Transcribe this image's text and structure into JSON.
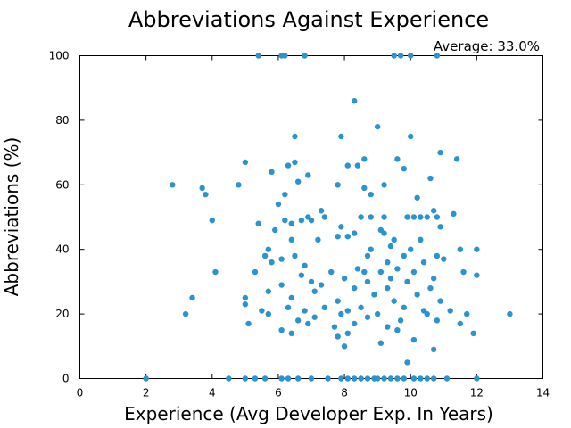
{
  "chart_data": {
    "type": "scatter",
    "title": "Abbreviations Against Experience",
    "annotation": "Average: 33.0%",
    "xlabel": "Experience (Avg Developer Exp. In Years)",
    "ylabel": "Abbreviations (%)",
    "xlim": [
      0,
      14
    ],
    "ylim": [
      0,
      100
    ],
    "xticks": [
      0,
      2,
      4,
      6,
      8,
      10,
      12,
      14
    ],
    "yticks": [
      0,
      20,
      40,
      60,
      80,
      100
    ],
    "grid": false,
    "marker_color": "#2b93d0",
    "series": [
      {
        "points": [
          [
            2.0,
            0
          ],
          [
            4.5,
            0
          ],
          [
            5.0,
            0
          ],
          [
            5.3,
            0
          ],
          [
            5.6,
            0
          ],
          [
            6.1,
            0
          ],
          [
            6.3,
            0
          ],
          [
            6.6,
            0
          ],
          [
            7.0,
            0
          ],
          [
            7.5,
            0
          ],
          [
            7.9,
            0
          ],
          [
            8.1,
            0
          ],
          [
            8.3,
            0
          ],
          [
            8.5,
            0
          ],
          [
            8.7,
            0
          ],
          [
            8.9,
            0
          ],
          [
            9.0,
            0
          ],
          [
            9.2,
            0
          ],
          [
            9.4,
            0
          ],
          [
            9.6,
            0
          ],
          [
            9.8,
            0
          ],
          [
            10.1,
            0
          ],
          [
            10.3,
            0
          ],
          [
            10.5,
            0
          ],
          [
            10.7,
            0
          ],
          [
            11.1,
            0
          ],
          [
            12.0,
            0
          ],
          [
            5.4,
            100
          ],
          [
            6.1,
            100
          ],
          [
            6.2,
            100
          ],
          [
            6.8,
            100
          ],
          [
            9.5,
            100
          ],
          [
            9.7,
            100
          ],
          [
            10.0,
            100
          ],
          [
            10.8,
            100
          ],
          [
            8.3,
            86
          ],
          [
            9.0,
            78
          ],
          [
            7.9,
            75
          ],
          [
            10.0,
            75
          ],
          [
            6.5,
            75
          ],
          [
            10.9,
            70
          ],
          [
            11.4,
            68
          ],
          [
            8.6,
            68
          ],
          [
            9.6,
            68
          ],
          [
            6.5,
            67
          ],
          [
            6.3,
            66
          ],
          [
            5.0,
            67
          ],
          [
            8.1,
            66
          ],
          [
            8.4,
            66
          ],
          [
            9.8,
            65
          ],
          [
            5.8,
            64
          ],
          [
            6.9,
            63
          ],
          [
            10.6,
            62
          ],
          [
            6.6,
            61
          ],
          [
            9.2,
            60
          ],
          [
            2.8,
            60
          ],
          [
            4.8,
            60
          ],
          [
            7.8,
            60
          ],
          [
            3.7,
            59
          ],
          [
            8.6,
            59
          ],
          [
            3.8,
            57
          ],
          [
            6.2,
            57
          ],
          [
            8.8,
            57
          ],
          [
            10.2,
            56
          ],
          [
            6.0,
            54
          ],
          [
            4.0,
            49
          ],
          [
            7.3,
            52
          ],
          [
            10.7,
            52
          ],
          [
            11.3,
            51
          ],
          [
            6.2,
            49
          ],
          [
            6.7,
            49
          ],
          [
            6.9,
            50
          ],
          [
            7.0,
            49
          ],
          [
            7.4,
            50
          ],
          [
            8.5,
            50
          ],
          [
            8.8,
            50
          ],
          [
            9.2,
            50
          ],
          [
            9.9,
            50
          ],
          [
            10.1,
            50
          ],
          [
            10.3,
            50
          ],
          [
            10.5,
            50
          ],
          [
            10.8,
            50
          ],
          [
            5.4,
            48
          ],
          [
            6.4,
            48
          ],
          [
            7.9,
            47
          ],
          [
            9.1,
            46
          ],
          [
            10.9,
            47
          ],
          [
            5.9,
            46
          ],
          [
            8.3,
            45
          ],
          [
            9.2,
            45
          ],
          [
            7.8,
            44
          ],
          [
            8.1,
            44
          ],
          [
            6.4,
            43
          ],
          [
            7.2,
            43
          ],
          [
            9.5,
            43
          ],
          [
            10.3,
            43
          ],
          [
            9.4,
            41
          ],
          [
            5.7,
            40
          ],
          [
            8.8,
            40
          ],
          [
            10.0,
            40
          ],
          [
            11.5,
            40
          ],
          [
            12.0,
            40
          ],
          [
            5.6,
            38
          ],
          [
            6.5,
            38
          ],
          [
            8.7,
            38
          ],
          [
            9.8,
            38
          ],
          [
            10.8,
            38
          ],
          [
            6.1,
            37
          ],
          [
            11.0,
            37
          ],
          [
            5.8,
            36
          ],
          [
            9.3,
            36
          ],
          [
            10.4,
            36
          ],
          [
            6.8,
            35
          ],
          [
            8.4,
            34
          ],
          [
            9.6,
            34
          ],
          [
            4.1,
            33
          ],
          [
            5.3,
            33
          ],
          [
            7.6,
            33
          ],
          [
            8.6,
            33
          ],
          [
            9.1,
            33
          ],
          [
            10.1,
            33
          ],
          [
            11.6,
            33
          ],
          [
            6.7,
            32
          ],
          [
            8.0,
            31
          ],
          [
            9.4,
            31
          ],
          [
            12.0,
            32
          ],
          [
            10.7,
            31
          ],
          [
            7.0,
            30
          ],
          [
            8.7,
            30
          ],
          [
            9.9,
            30
          ],
          [
            6.1,
            29
          ],
          [
            7.3,
            29
          ],
          [
            8.3,
            28
          ],
          [
            9.3,
            28
          ],
          [
            10.6,
            28
          ],
          [
            5.7,
            27
          ],
          [
            7.1,
            27
          ],
          [
            8.9,
            26
          ],
          [
            10.2,
            26
          ],
          [
            3.4,
            25
          ],
          [
            5.0,
            25
          ],
          [
            6.4,
            25
          ],
          [
            7.8,
            24
          ],
          [
            9.5,
            24
          ],
          [
            10.9,
            24
          ],
          [
            5.0,
            23
          ],
          [
            6.3,
            22
          ],
          [
            7.4,
            22
          ],
          [
            8.5,
            22
          ],
          [
            9.8,
            22
          ],
          [
            5.5,
            21
          ],
          [
            6.8,
            21
          ],
          [
            8.1,
            21
          ],
          [
            10.4,
            21
          ],
          [
            11.2,
            21
          ],
          [
            3.2,
            20
          ],
          [
            5.7,
            20
          ],
          [
            7.9,
            20
          ],
          [
            9.0,
            20
          ],
          [
            10.5,
            20
          ],
          [
            11.7,
            20
          ],
          [
            13.0,
            20
          ],
          [
            6.6,
            18
          ],
          [
            7.1,
            19
          ],
          [
            8.7,
            19
          ],
          [
            9.7,
            18
          ],
          [
            10.8,
            18
          ],
          [
            5.1,
            17
          ],
          [
            6.9,
            17
          ],
          [
            8.3,
            17
          ],
          [
            9.3,
            16
          ],
          [
            11.5,
            17
          ],
          [
            6.1,
            15
          ],
          [
            7.7,
            16
          ],
          [
            9.6,
            15
          ],
          [
            6.4,
            14
          ],
          [
            8.1,
            14
          ],
          [
            11.9,
            14
          ],
          [
            7.8,
            13
          ],
          [
            10.1,
            12
          ],
          [
            9.1,
            11
          ],
          [
            8.0,
            10
          ],
          [
            10.7,
            9
          ],
          [
            9.9,
            5
          ]
        ]
      }
    ]
  }
}
